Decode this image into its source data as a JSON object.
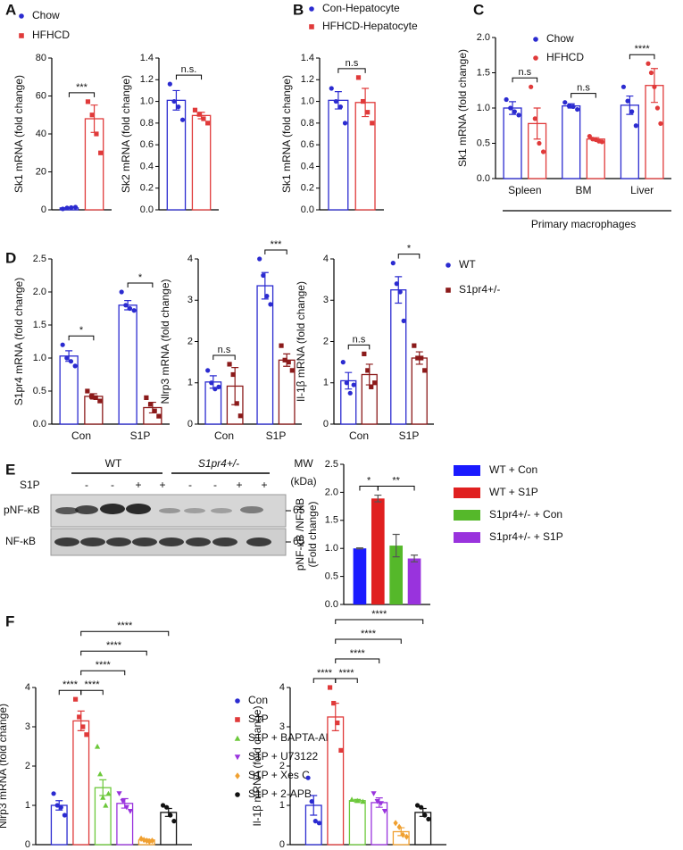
{
  "panel_labels": [
    "A",
    "B",
    "C",
    "D",
    "E",
    "F"
  ],
  "blot": {
    "groups": [
      "WT",
      "S1pr4+/-"
    ],
    "mw": "MW",
    "mw_unit": "(kDa)",
    "treatment": "S1P",
    "signs": [
      "-",
      "-",
      "+",
      "+",
      "-",
      "-",
      "+",
      "+"
    ],
    "rows": [
      "pNF-κB",
      "NF-κB"
    ],
    "mw_marks": [
      "65",
      "65"
    ]
  },
  "chart_data": [
    {
      "type": "bar",
      "ylabel": "Sk1 mRNA (fold change)",
      "ylim": [
        0,
        80
      ],
      "yticks": [
        0,
        20,
        40,
        60,
        80
      ],
      "categories": [
        null
      ],
      "legend": true,
      "series": [
        {
          "name": "Chow",
          "color": "#2b2bd0",
          "marker": "circle",
          "values": [
            1
          ],
          "errors": [
            0.3
          ],
          "points": [
            [
              0.5,
              1.0,
              1.2,
              1.4
            ]
          ]
        },
        {
          "name": "HFHCD",
          "color": "#e03a3a",
          "marker": "square",
          "values": [
            48
          ],
          "errors": [
            7.2
          ],
          "points": [
            [
              57,
              50,
              40,
              30
            ]
          ]
        }
      ],
      "annotations": [
        {
          "text": "***",
          "bars": [
            0,
            1
          ]
        }
      ]
    },
    {
      "type": "bar",
      "ylabel": "Sk2 mRNA (fold change)",
      "ylim": [
        0,
        1.4
      ],
      "yticks": [
        {
          "value": 0,
          "label": "0.0"
        },
        0.2,
        0.4,
        0.6,
        0.8,
        {
          "value": 1,
          "label": "1.0"
        },
        1.2,
        1.4
      ],
      "categories": [
        null
      ],
      "series": [
        {
          "color": "#2b2bd0",
          "marker": "circle",
          "values": [
            1.01
          ],
          "errors": [
            0.09
          ],
          "points": [
            [
              1.16,
              1.0,
              0.95,
              0.83
            ]
          ]
        },
        {
          "color": "#e03a3a",
          "marker": "square",
          "values": [
            0.87
          ],
          "errors": [
            0.03
          ],
          "points": [
            [
              0.92,
              0.88,
              0.84,
              0.8
            ]
          ]
        }
      ],
      "annotations": [
        {
          "text": "n.s.",
          "bars": [
            0,
            1
          ]
        }
      ]
    },
    {
      "type": "bar",
      "ylabel": "Sk1 mRNA (fold change)",
      "ylim": [
        0,
        1.4
      ],
      "yticks": [
        {
          "value": 0,
          "label": "0.0"
        },
        0.2,
        0.4,
        0.6,
        0.8,
        {
          "value": 1,
          "label": "1.0"
        },
        1.2,
        1.4
      ],
      "categories": [
        null
      ],
      "legend": true,
      "series": [
        {
          "name": "Con-Hepatocyte",
          "color": "#2b2bd0",
          "marker": "circle",
          "values": [
            1.01
          ],
          "errors": [
            0.08
          ],
          "points": [
            [
              1.12,
              1.0,
              0.95,
              0.8
            ]
          ]
        },
        {
          "name": "HFHCD-Hepatocyte",
          "color": "#e03a3a",
          "marker": "square",
          "values": [
            0.99
          ],
          "errors": [
            0.13
          ],
          "points": [
            [
              1.22,
              1.0,
              0.9,
              0.8
            ]
          ]
        }
      ],
      "annotations": [
        {
          "text": "n.s",
          "bars": [
            0,
            1
          ]
        }
      ]
    },
    {
      "type": "bar",
      "ylabel": "Sk1 mRNA (fold change)",
      "xlabel": "Primary macrophages",
      "ylim": [
        0,
        2
      ],
      "yticks": [
        {
          "value": 0,
          "label": "0.0"
        },
        0.5,
        {
          "value": 1,
          "label": "1.0"
        },
        1.5,
        {
          "value": 2,
          "label": "2.0"
        }
      ],
      "categories": [
        "Spleen",
        "BM",
        "Liver"
      ],
      "legend": true,
      "series": [
        {
          "name": "Chow",
          "color": "#2b2bd0",
          "marker": "circle",
          "values": [
            1.0,
            1.03,
            1.04
          ],
          "errors": [
            0.09,
            0.03,
            0.13
          ],
          "points": [
            [
              1.12,
              1.0,
              0.95,
              0.9
            ],
            [
              1.08,
              1.03,
              1.02,
              0.98
            ],
            [
              1.3,
              1.1,
              0.95,
              0.75
            ]
          ]
        },
        {
          "name": "HFHCD",
          "color": "#e03a3a",
          "marker": "circle",
          "values": [
            0.78,
            0.56,
            1.32
          ],
          "errors": [
            0.22,
            0.02,
            0.24
          ],
          "points": [
            [
              1.3,
              0.85,
              0.5,
              0.38
            ],
            [
              0.6,
              0.56,
              0.55,
              0.53,
              0.52
            ],
            [
              1.63,
              1.5,
              1.3,
              1.0,
              0.78
            ]
          ]
        }
      ],
      "annotations": [
        {
          "text": "n.s",
          "bars": [
            0,
            1
          ]
        },
        {
          "text": "n.s",
          "bars": [
            2,
            3
          ]
        },
        {
          "text": "****",
          "bars": [
            4,
            5
          ]
        }
      ]
    },
    {
      "type": "bar",
      "ylabel": "S1pr4 mRNA (fold change)",
      "ylim": [
        0,
        2.5
      ],
      "yticks": [
        {
          "value": 0,
          "label": "0.0"
        },
        0.5,
        {
          "value": 1,
          "label": "1.0"
        },
        1.5,
        {
          "value": 2,
          "label": "2.0"
        },
        2.5
      ],
      "categories": [
        "Con",
        "S1P"
      ],
      "series": [
        {
          "color": "#2b2bd0",
          "marker": "circle",
          "values": [
            1.03,
            1.8
          ],
          "errors": [
            0.08,
            0.07
          ],
          "points": [
            [
              1.2,
              1.0,
              0.95,
              0.88
            ],
            [
              2.0,
              1.8,
              1.75,
              1.72
            ]
          ]
        },
        {
          "color": "#8b1a1a",
          "marker": "square",
          "values": [
            0.42,
            0.25
          ],
          "errors": [
            0.04,
            0.08
          ],
          "points": [
            [
              0.5,
              0.42,
              0.4,
              0.35
            ],
            [
              0.4,
              0.3,
              0.2,
              0.12
            ]
          ]
        }
      ],
      "annotations": [
        {
          "text": "*",
          "bars": [
            0,
            1
          ]
        },
        {
          "text": "*",
          "bars": [
            2,
            3
          ]
        }
      ]
    },
    {
      "type": "bar",
      "ylabel": "Nlrp3 mRNA (fold change)",
      "ylim": [
        0,
        4
      ],
      "yticks": [
        0,
        1,
        2,
        3,
        4
      ],
      "categories": [
        "Con",
        "S1P"
      ],
      "series": [
        {
          "color": "#2b2bd0",
          "marker": "circle",
          "values": [
            1.02,
            3.35
          ],
          "errors": [
            0.15,
            0.32
          ],
          "points": [
            [
              1.3,
              1.0,
              0.85,
              0.9
            ],
            [
              4.0,
              3.6,
              3.1,
              2.9
            ]
          ]
        },
        {
          "color": "#8b1a1a",
          "marker": "square",
          "values": [
            0.92,
            1.55
          ],
          "errors": [
            0.45,
            0.15
          ],
          "points": [
            [
              1.45,
              1.2,
              0.5,
              0.2
            ],
            [
              1.9,
              1.55,
              1.5,
              1.3
            ]
          ]
        }
      ],
      "annotations": [
        {
          "text": "n.s",
          "bars": [
            0,
            1
          ]
        },
        {
          "text": "***",
          "bars": [
            2,
            3
          ]
        }
      ]
    },
    {
      "type": "bar",
      "ylabel": "Il-1β mRNA (fold change)",
      "ylim": [
        0,
        4
      ],
      "yticks": [
        0,
        1,
        2,
        3,
        4
      ],
      "categories": [
        "Con",
        "S1P"
      ],
      "legend": true,
      "series": [
        {
          "name": "WT",
          "color": "#2b2bd0",
          "marker": "circle",
          "values": [
            1.05,
            3.25
          ],
          "errors": [
            0.2,
            0.32
          ],
          "points": [
            [
              1.5,
              1.0,
              0.75,
              0.95
            ],
            [
              3.9,
              3.4,
              3.2,
              2.5
            ]
          ]
        },
        {
          "name": "S1pr4+/-",
          "color": "#8b1a1a",
          "marker": "square",
          "values": [
            1.2,
            1.6
          ],
          "errors": [
            0.25,
            0.15
          ],
          "points": [
            [
              1.7,
              1.3,
              0.9,
              1.0
            ],
            [
              1.9,
              1.6,
              1.6,
              1.3
            ]
          ]
        }
      ],
      "annotations": [
        {
          "text": "n.s",
          "bars": [
            0,
            1
          ]
        },
        {
          "text": "*",
          "bars": [
            2,
            3
          ]
        }
      ]
    },
    {
      "type": "bar",
      "ylabel": [
        "pNF-κB /NF-κB",
        "(Fold change)"
      ],
      "ylim": [
        0,
        2.5
      ],
      "yticks": [
        {
          "value": 0,
          "label": "0.0"
        },
        0.5,
        {
          "value": 1,
          "label": "1.0"
        },
        1.5,
        {
          "value": 2,
          "label": "2.0"
        },
        2.5
      ],
      "categories": [
        null
      ],
      "legend": true,
      "filled": true,
      "series": [
        {
          "name": "WT + Con",
          "color": "#1a1aff",
          "values": [
            1.0
          ],
          "errors": [
            0.01
          ]
        },
        {
          "name": "WT + S1P",
          "color": "#e02020",
          "values": [
            1.89
          ],
          "errors": [
            0.06
          ]
        },
        {
          "name": "S1pr4+/- + Con",
          "color": "#55b82a",
          "values": [
            1.05
          ],
          "errors": [
            0.2
          ]
        },
        {
          "name": "S1pr4+/- + S1P",
          "color": "#9933dd",
          "values": [
            0.82
          ],
          "errors": [
            0.06
          ]
        }
      ],
      "annotations": [
        {
          "text": "*",
          "bars": [
            0,
            1
          ]
        },
        {
          "text": "**",
          "bars": [
            1,
            3
          ]
        }
      ]
    },
    {
      "type": "bar",
      "ylabel": "Nlrp3 mRNA (fold change)",
      "ylim": [
        0,
        4
      ],
      "yticks": [
        0,
        1,
        2,
        3,
        4
      ],
      "categories": [
        null
      ],
      "legend": true,
      "series": [
        {
          "name": "Con",
          "color": "#2b2bd0",
          "marker": "circle",
          "values": [
            1.0
          ],
          "errors": [
            0.12
          ],
          "points": [
            [
              1.3,
              1.0,
              0.95,
              0.75
            ]
          ]
        },
        {
          "name": "S1P",
          "color": "#e03a3a",
          "marker": "square",
          "values": [
            3.15
          ],
          "errors": [
            0.25
          ],
          "points": [
            [
              3.7,
              3.25,
              3.0,
              2.8
            ]
          ]
        },
        {
          "name": "S1P + BAPTA-AM",
          "color": "#6cc83a",
          "marker": "triangle",
          "values": [
            1.45
          ],
          "errors": [
            0.2
          ],
          "points": [
            [
              2.5,
              1.8,
              1.2,
              1.0,
              1.3
            ]
          ]
        },
        {
          "name": "S1P + U73122",
          "color": "#9933dd",
          "marker": "triangle-down",
          "values": [
            1.05
          ],
          "errors": [
            0.12
          ],
          "points": [
            [
              1.3,
              1.1,
              0.95,
              0.85
            ]
          ]
        },
        {
          "name": "S1P + Xes C",
          "color": "#f0a030",
          "marker": "diamond",
          "values": [
            0.12
          ],
          "errors": [
            0.02
          ],
          "points": [
            [
              0.15,
              0.12,
              0.1,
              0.08,
              0.1
            ]
          ]
        },
        {
          "name": "S1P + 2-APB",
          "color": "#111111",
          "marker": "circle",
          "values": [
            0.82
          ],
          "errors": [
            0.1
          ],
          "points": [
            [
              1.0,
              0.95,
              0.75,
              0.6
            ]
          ]
        }
      ],
      "annotations": [
        {
          "text": "****",
          "bars": [
            0,
            1
          ]
        },
        {
          "text": "****",
          "bars": [
            1,
            2
          ]
        },
        {
          "text": "****",
          "bars": [
            1,
            3
          ]
        },
        {
          "text": "****",
          "bars": [
            1,
            4
          ]
        },
        {
          "text": "****",
          "bars": [
            1,
            5
          ]
        }
      ]
    },
    {
      "type": "bar",
      "ylabel": "Il-1β mRNA (fold change)",
      "ylim": [
        0,
        4
      ],
      "yticks": [
        0,
        1,
        2,
        3,
        4
      ],
      "categories": [
        null
      ],
      "series": [
        {
          "color": "#2b2bd0",
          "marker": "circle",
          "values": [
            1.0
          ],
          "errors": [
            0.25
          ],
          "points": [
            [
              1.7,
              1.1,
              0.6,
              0.55
            ]
          ]
        },
        {
          "color": "#e03a3a",
          "marker": "square",
          "values": [
            3.25
          ],
          "errors": [
            0.35
          ],
          "points": [
            [
              4.0,
              3.6,
              3.1,
              2.4
            ]
          ]
        },
        {
          "color": "#6cc83a",
          "marker": "triangle",
          "values": [
            1.12
          ],
          "errors": [
            0.03
          ],
          "points": [
            [
              1.15,
              1.12,
              1.1
            ]
          ]
        },
        {
          "color": "#9933dd",
          "marker": "triangle-down",
          "values": [
            1.07
          ],
          "errors": [
            0.12
          ],
          "points": [
            [
              1.3,
              1.1,
              1.05,
              0.85
            ]
          ]
        },
        {
          "color": "#f0a030",
          "marker": "diamond",
          "values": [
            0.33
          ],
          "errors": [
            0.1
          ],
          "points": [
            [
              0.55,
              0.45,
              0.25,
              0.2
            ]
          ]
        },
        {
          "color": "#111111",
          "marker": "circle",
          "values": [
            0.82
          ],
          "errors": [
            0.1
          ],
          "points": [
            [
              1.0,
              0.95,
              0.75,
              0.65
            ]
          ]
        }
      ],
      "annotations": [
        {
          "text": "****",
          "bars": [
            0,
            1
          ]
        },
        {
          "text": "****",
          "bars": [
            1,
            2
          ]
        },
        {
          "text": "****",
          "bars": [
            1,
            3
          ]
        },
        {
          "text": "****",
          "bars": [
            1,
            4
          ]
        },
        {
          "text": "****",
          "bars": [
            1,
            5
          ]
        }
      ]
    }
  ]
}
